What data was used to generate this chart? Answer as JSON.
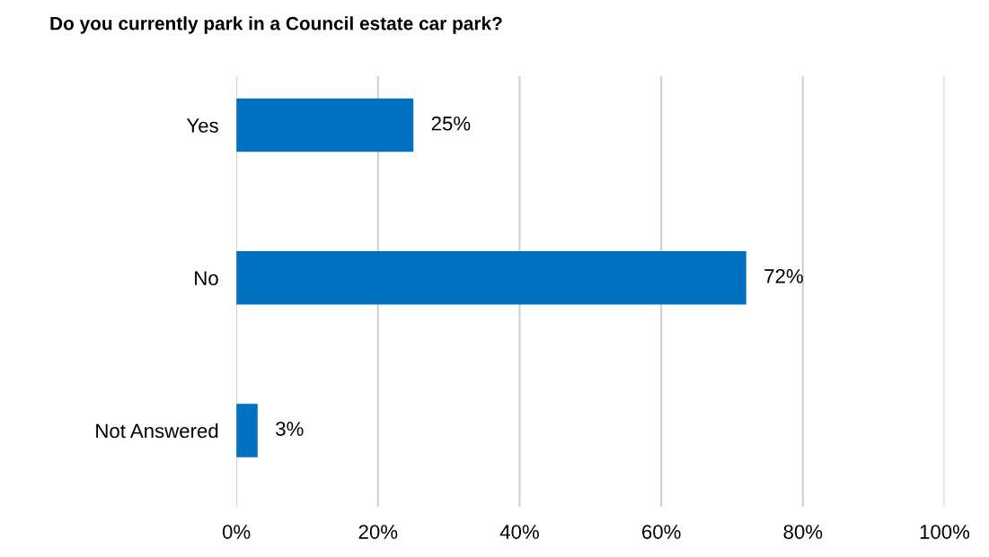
{
  "chart_data": {
    "type": "bar",
    "orientation": "horizontal",
    "title": "Do you currently park in a Council estate car park?",
    "categories": [
      "Yes",
      "No",
      "Not Answered"
    ],
    "values": [
      25,
      72,
      3
    ],
    "color": "#0070c0",
    "value_labels": [
      "25%",
      "72%",
      "3%"
    ],
    "xlim": [
      0,
      100
    ],
    "xticks": [
      {
        "value": 0,
        "label": "0%"
      },
      {
        "value": 20,
        "label": "20%"
      },
      {
        "value": 40,
        "label": "40%"
      },
      {
        "value": 60,
        "label": "60%"
      },
      {
        "value": 80,
        "label": "80%"
      },
      {
        "value": 100,
        "label": "100%"
      }
    ],
    "grid": "x",
    "legend": false
  }
}
